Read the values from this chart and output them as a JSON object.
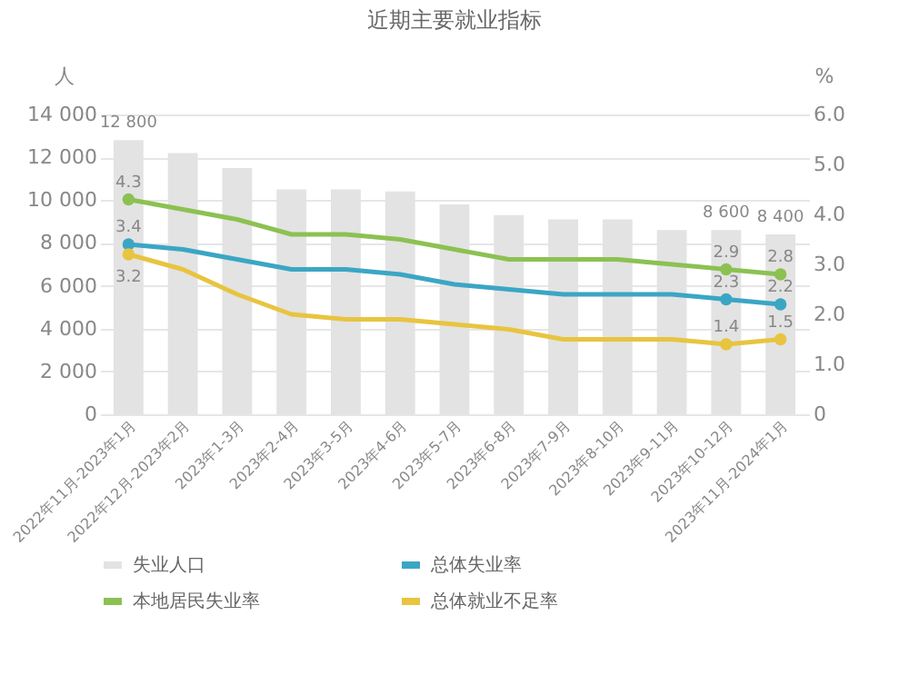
{
  "chart_data": {
    "type": "bar",
    "title": "近期主要就业指标",
    "ylabel": "人",
    "y2label": "%",
    "categories": [
      "2022年11月-2023年1月",
      "2022年12月-2023年2月",
      "2023年1-3月",
      "2023年2-4月",
      "2023年3-5月",
      "2023年4-6月",
      "2023年5-7月",
      "2023年6-8月",
      "2023年7-9月",
      "2023年8-10月",
      "2023年9-11月",
      "2023年10-12月",
      "2023年11月-2024年1月"
    ],
    "series": [
      {
        "name": "失业人口",
        "color": "#e3e3e3",
        "values": [
          12800,
          12200,
          11500,
          10500,
          10500,
          10400,
          9800,
          9300,
          9100,
          9100,
          8600,
          8600,
          8400
        ],
        "value_labels": [
          "12 800",
          null,
          null,
          null,
          null,
          null,
          null,
          null,
          null,
          null,
          null,
          "8 600",
          "8 400"
        ]
      },
      {
        "name": "总体失业率",
        "type": "line",
        "axis": "y2",
        "color": "#3ba6c4",
        "values": [
          3.4,
          3.3,
          3.1,
          2.9,
          2.9,
          2.8,
          2.6,
          2.5,
          2.4,
          2.4,
          2.4,
          2.3,
          2.2
        ],
        "value_labels": [
          "3.4",
          null,
          null,
          null,
          null,
          null,
          null,
          null,
          null,
          null,
          null,
          "2.3",
          "2.2"
        ]
      },
      {
        "name": "本地居民失业率",
        "type": "line",
        "axis": "y2",
        "color": "#8cc152",
        "values": [
          4.3,
          4.1,
          3.9,
          3.6,
          3.6,
          3.5,
          3.3,
          3.1,
          3.1,
          3.1,
          3.0,
          2.9,
          2.8
        ],
        "value_labels": [
          "4.3",
          null,
          null,
          null,
          null,
          null,
          null,
          null,
          null,
          null,
          null,
          "2.9",
          "2.8"
        ]
      },
      {
        "name": "总体就业不足率",
        "type": "line",
        "axis": "y2",
        "color": "#e8c440",
        "values": [
          3.2,
          2.9,
          2.4,
          2.0,
          1.9,
          1.9,
          1.8,
          1.7,
          1.5,
          1.5,
          1.5,
          1.4,
          1.5
        ],
        "value_labels": [
          "3.2",
          null,
          null,
          null,
          null,
          null,
          null,
          null,
          null,
          null,
          null,
          "1.4",
          "1.5"
        ]
      }
    ],
    "ylim": [
      0,
      14000
    ],
    "yticks": [
      0,
      {
        "value": 2000,
        "label": "2 000"
      },
      {
        "value": 4000,
        "label": "4 000"
      },
      {
        "value": 6000,
        "label": "6 000"
      },
      {
        "value": 8000,
        "label": "8 000"
      },
      {
        "value": 10000,
        "label": "10 000"
      },
      {
        "value": 12000,
        "label": "12 000"
      },
      {
        "value": 14000,
        "label": "14 000"
      }
    ],
    "y2lim": [
      0,
      6
    ],
    "y2ticks": [
      0,
      {
        "value": 1,
        "label": "1.0"
      },
      {
        "value": 2,
        "label": "2.0"
      },
      {
        "value": 3,
        "label": "3.0"
      },
      {
        "value": 4,
        "label": "4.0"
      },
      {
        "value": 5,
        "label": "5.0"
      },
      {
        "value": 6,
        "label": "6.0"
      }
    ],
    "grid": "y",
    "legend": "bottom"
  }
}
